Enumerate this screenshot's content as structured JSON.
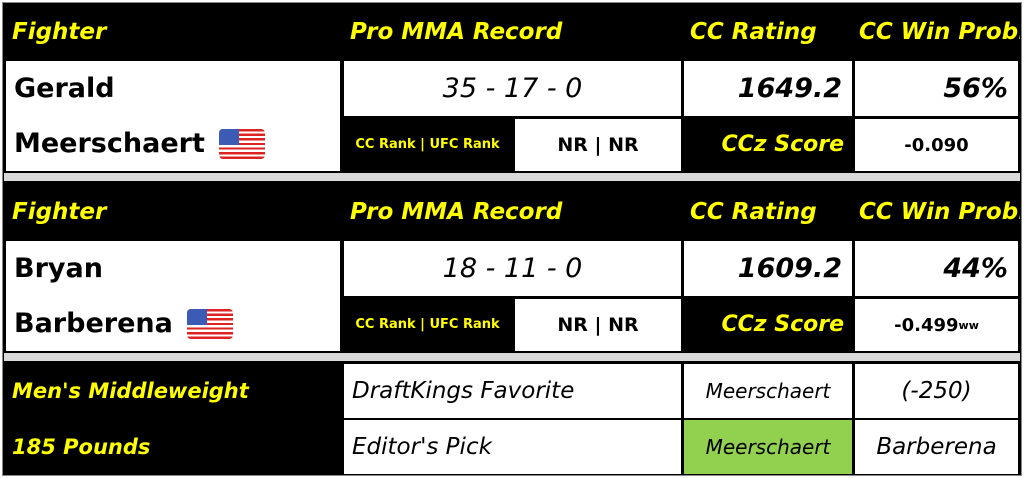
{
  "headers": {
    "fighter": "Fighter",
    "record": "Pro MMA Record",
    "rating": "CC Rating",
    "winprob": "CC Win Prob."
  },
  "fighters": [
    {
      "first": "Gerald",
      "last": "Meerschaert",
      "flag": "us-flag-icon",
      "record": "35 - 17 - 0",
      "rating": "1649.2",
      "win_prob": "56%",
      "rank_label": "CC Rank | UFC Rank",
      "rank": "NR | NR",
      "ccz_label": "CCz Score",
      "ccz": "-0.090",
      "ccz_sup": ""
    },
    {
      "first": "Bryan",
      "last": "Barberena",
      "flag": "us-flag-icon",
      "record": "18 - 11 - 0",
      "rating": "1609.2",
      "win_prob": "44%",
      "rank_label": "CC Rank | UFC Rank",
      "rank": "NR | NR",
      "ccz_label": "CCz Score",
      "ccz": "-0.499",
      "ccz_sup": "ww"
    }
  ],
  "footer": {
    "division": "Men's Middleweight",
    "weight": "185 Pounds",
    "dk_label": "DraftKings Favorite",
    "dk_fighter": "Meerschaert",
    "dk_odds": "(-250)",
    "pick_label": "Editor's Pick",
    "pick_fighter": "Meerschaert",
    "pick_other": "Barberena"
  },
  "colors": {
    "header_text": "#ffff00",
    "pick_highlight": "#92d050",
    "separator": "#d9d9d9"
  }
}
